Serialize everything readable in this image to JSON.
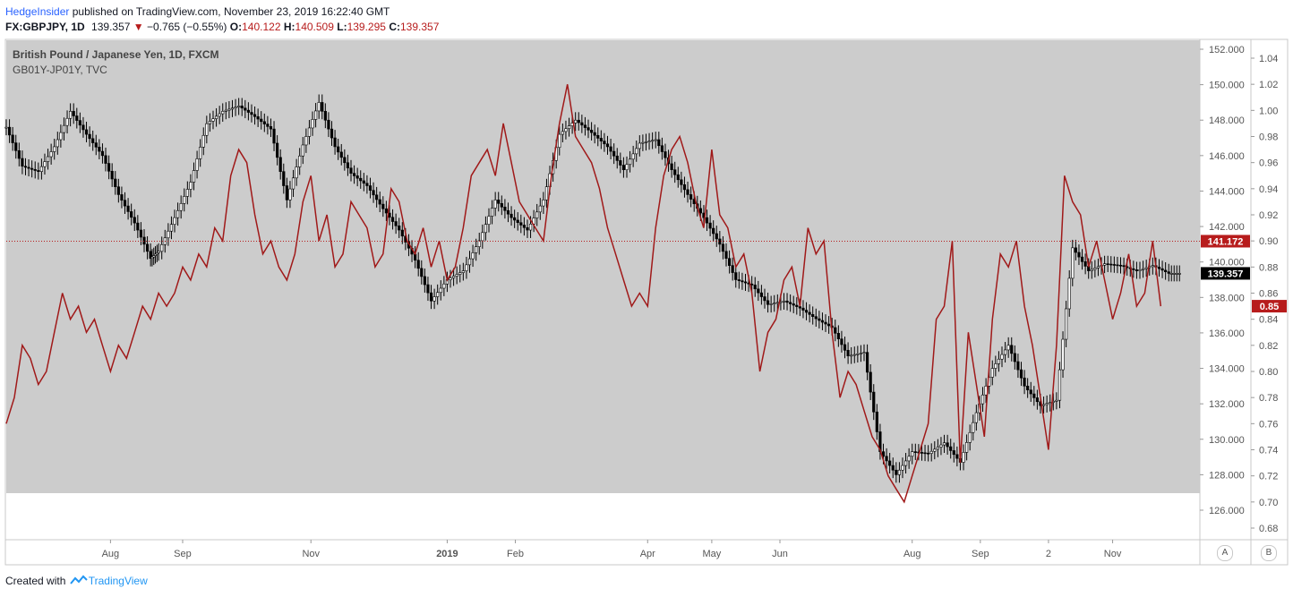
{
  "header": {
    "author": "HedgeInsider",
    "published": "published on TradingView.com, November 23, 2019 16:22:40 GMT",
    "symbol": "FX:GBPJPY, 1D",
    "last": "139.357",
    "change_arrow": "▼",
    "change": "−0.765 (−0.55%)",
    "o_label": "O:",
    "o_val": "140.122",
    "h_label": "H:",
    "h_val": "140.509",
    "l_label": "L:",
    "l_val": "139.295",
    "c_label": "C:",
    "c_val": "139.357"
  },
  "pane": {
    "title": "British Pound / Japanese Yen, 1D, FXCM",
    "subtitle": "GB01Y-JP01Y, TVC"
  },
  "footer": {
    "created": "Created with",
    "brand": "TradingView"
  },
  "buttons": {
    "a": "A",
    "b": "B"
  },
  "colors": {
    "pane_bg": "#cccccc",
    "candle": "#000000",
    "spread_line": "#a01919",
    "price_tag": "#000000",
    "ref_tag": "#b71c1c"
  },
  "chart_data": {
    "type": "line",
    "left_axis": {
      "label": "GBPJPY",
      "ylim": [
        125.2,
        153.1
      ],
      "ticks": [
        "152.000",
        "150.000",
        "148.000",
        "146.000",
        "144.000",
        "142.000",
        "140.000",
        "138.000",
        "136.000",
        "134.000",
        "132.000",
        "130.000",
        "128.000",
        "126.000"
      ]
    },
    "right_axis": {
      "label": "GB01Y-JP01Y",
      "ylim": [
        0.66,
        1.06
      ],
      "ticks": [
        "1.04",
        "1.02",
        "1.00",
        "0.98",
        "0.96",
        "0.94",
        "0.92",
        "0.90",
        "0.88",
        "0.86",
        "0.84",
        "0.82",
        "0.80",
        "0.78",
        "0.76",
        "0.74",
        "0.72",
        "0.70",
        "0.68"
      ]
    },
    "x_labels": [
      {
        "label": "Aug",
        "x": 2018.58
      },
      {
        "label": "Sep",
        "x": 2018.67
      },
      {
        "label": "Nov",
        "x": 2018.83
      },
      {
        "label": "2019",
        "x": 2019.0,
        "bold": true
      },
      {
        "label": "Feb",
        "x": 2019.085
      },
      {
        "label": "Apr",
        "x": 2019.25
      },
      {
        "label": "May",
        "x": 2019.33
      },
      {
        "label": "Jun",
        "x": 2019.415
      },
      {
        "label": "Aug",
        "x": 2019.58
      },
      {
        "label": "Sep",
        "x": 2019.665
      },
      {
        "label": "2",
        "x": 2019.75
      },
      {
        "label": "Nov",
        "x": 2019.83
      }
    ],
    "xlim": [
      2018.45,
      2019.95
    ],
    "series": [
      {
        "name": "British Pound / Japanese Yen",
        "style": "candles-close",
        "axis": "left",
        "x": [
          2018.45,
          2018.47,
          2018.49,
          2018.51,
          2018.53,
          2018.55,
          2018.57,
          2018.59,
          2018.61,
          2018.63,
          2018.64,
          2018.66,
          2018.68,
          2018.7,
          2018.72,
          2018.74,
          2018.76,
          2018.78,
          2018.8,
          2018.82,
          2018.84,
          2018.86,
          2018.88,
          2018.9,
          2018.92,
          2018.94,
          2018.96,
          2018.98,
          2019.0,
          2019.02,
          2019.04,
          2019.06,
          2019.08,
          2019.1,
          2019.12,
          2019.14,
          2019.16,
          2019.18,
          2019.2,
          2019.22,
          2019.24,
          2019.26,
          2019.28,
          2019.3,
          2019.32,
          2019.34,
          2019.36,
          2019.38,
          2019.4,
          2019.42,
          2019.44,
          2019.46,
          2019.48,
          2019.5,
          2019.52,
          2019.54,
          2019.56,
          2019.58,
          2019.6,
          2019.62,
          2019.64,
          2019.66,
          2019.68,
          2019.7,
          2019.72,
          2019.74,
          2019.76,
          2019.78,
          2019.8,
          2019.82,
          2019.84,
          2019.86,
          2019.88,
          2019.9
        ],
        "values": [
          147.6,
          145.4,
          145.1,
          146.5,
          148.5,
          147.2,
          146.0,
          143.8,
          142.2,
          140.2,
          140.6,
          142.5,
          144.5,
          147.8,
          148.5,
          148.8,
          148.2,
          147.5,
          143.5,
          146.6,
          149.0,
          146.5,
          145.0,
          144.3,
          143.0,
          141.8,
          140.1,
          137.8,
          139.0,
          139.5,
          141.2,
          143.5,
          142.5,
          141.8,
          143.5,
          147.2,
          148.0,
          147.3,
          146.5,
          145.2,
          146.7,
          146.9,
          145.2,
          143.8,
          142.5,
          141.0,
          139.0,
          138.7,
          137.6,
          137.8,
          137.4,
          136.8,
          136.3,
          134.7,
          134.9,
          129.3,
          128.0,
          129.3,
          129.2,
          129.8,
          128.7,
          131.5,
          134.0,
          135.3,
          133.0,
          131.9,
          132.2,
          140.8,
          139.5,
          139.9,
          139.8,
          139.5,
          139.8,
          139.357
        ]
      },
      {
        "name": "GB01Y-JP01Y",
        "style": "line",
        "axis": "right",
        "x": [
          2018.45,
          2018.46,
          2018.47,
          2018.48,
          2018.49,
          2018.5,
          2018.51,
          2018.52,
          2018.53,
          2018.54,
          2018.55,
          2018.56,
          2018.57,
          2018.58,
          2018.59,
          2018.6,
          2018.61,
          2018.62,
          2018.63,
          2018.64,
          2018.65,
          2018.66,
          2018.67,
          2018.68,
          2018.69,
          2018.7,
          2018.71,
          2018.72,
          2018.73,
          2018.74,
          2018.75,
          2018.76,
          2018.77,
          2018.78,
          2018.79,
          2018.8,
          2018.81,
          2018.82,
          2018.83,
          2018.84,
          2018.85,
          2018.86,
          2018.87,
          2018.88,
          2018.89,
          2018.9,
          2018.91,
          2018.92,
          2018.93,
          2018.94,
          2018.95,
          2018.96,
          2018.97,
          2018.98,
          2018.99,
          2019.0,
          2019.01,
          2019.02,
          2019.03,
          2019.04,
          2019.05,
          2019.06,
          2019.07,
          2019.08,
          2019.09,
          2019.1,
          2019.11,
          2019.12,
          2019.13,
          2019.14,
          2019.15,
          2019.16,
          2019.17,
          2019.18,
          2019.19,
          2019.2,
          2019.21,
          2019.22,
          2019.23,
          2019.24,
          2019.25,
          2019.26,
          2019.27,
          2019.28,
          2019.29,
          2019.3,
          2019.31,
          2019.32,
          2019.33,
          2019.34,
          2019.35,
          2019.36,
          2019.37,
          2019.38,
          2019.39,
          2019.4,
          2019.41,
          2019.42,
          2019.43,
          2019.44,
          2019.45,
          2019.46,
          2019.47,
          2019.48,
          2019.49,
          2019.5,
          2019.51,
          2019.52,
          2019.53,
          2019.54,
          2019.55,
          2019.56,
          2019.57,
          2019.58,
          2019.59,
          2019.6,
          2019.61,
          2019.62,
          2019.63,
          2019.64,
          2019.65,
          2019.66,
          2019.67,
          2019.68,
          2019.69,
          2019.7,
          2019.71,
          2019.72,
          2019.73,
          2019.74,
          2019.75,
          2019.76,
          2019.77,
          2019.78,
          2019.79,
          2019.8,
          2019.81,
          2019.82,
          2019.83,
          2019.84,
          2019.85,
          2019.86,
          2019.87,
          2019.88,
          2019.89
        ],
        "values": [
          0.76,
          0.78,
          0.82,
          0.81,
          0.79,
          0.8,
          0.83,
          0.86,
          0.84,
          0.85,
          0.83,
          0.84,
          0.82,
          0.8,
          0.82,
          0.81,
          0.83,
          0.85,
          0.84,
          0.86,
          0.85,
          0.86,
          0.88,
          0.87,
          0.89,
          0.88,
          0.91,
          0.9,
          0.95,
          0.97,
          0.96,
          0.92,
          0.89,
          0.9,
          0.88,
          0.87,
          0.89,
          0.93,
          0.95,
          0.9,
          0.92,
          0.88,
          0.89,
          0.93,
          0.92,
          0.91,
          0.88,
          0.89,
          0.94,
          0.93,
          0.9,
          0.89,
          0.91,
          0.88,
          0.9,
          0.87,
          0.88,
          0.91,
          0.95,
          0.96,
          0.97,
          0.95,
          0.99,
          0.96,
          0.93,
          0.92,
          0.91,
          0.9,
          0.95,
          0.99,
          1.02,
          0.98,
          0.97,
          0.96,
          0.94,
          0.91,
          0.89,
          0.87,
          0.85,
          0.86,
          0.85,
          0.91,
          0.95,
          0.97,
          0.98,
          0.96,
          0.93,
          0.91,
          0.97,
          0.92,
          0.91,
          0.88,
          0.89,
          0.86,
          0.8,
          0.83,
          0.84,
          0.87,
          0.88,
          0.85,
          0.91,
          0.89,
          0.9,
          0.83,
          0.78,
          0.8,
          0.79,
          0.77,
          0.75,
          0.74,
          0.72,
          0.71,
          0.7,
          0.72,
          0.74,
          0.76,
          0.84,
          0.85,
          0.9,
          0.73,
          0.83,
          0.79,
          0.75,
          0.84,
          0.89,
          0.88,
          0.9,
          0.85,
          0.82,
          0.78,
          0.74,
          0.82,
          0.95,
          0.93,
          0.92,
          0.88,
          0.9,
          0.87,
          0.84,
          0.86,
          0.89,
          0.85,
          0.86,
          0.9,
          0.85
        ]
      }
    ],
    "price_tags": [
      {
        "label": "141.172",
        "axis": "left",
        "value": 141.172,
        "style": "ref"
      },
      {
        "label": "139.357",
        "axis": "left",
        "value": 139.357,
        "style": "last"
      },
      {
        "label": "0.85",
        "axis": "right",
        "value": 0.85,
        "style": "ref"
      }
    ]
  }
}
